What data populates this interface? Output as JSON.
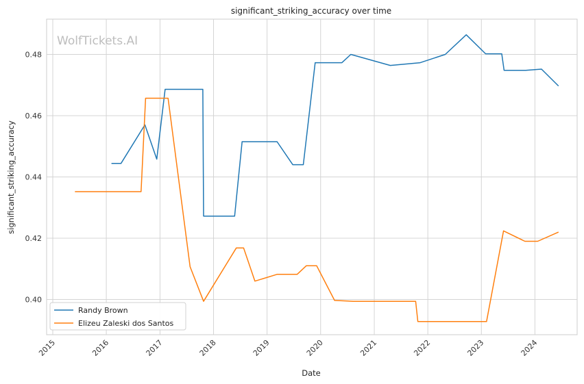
{
  "chart_data": {
    "type": "line",
    "title": "significant_striking_accuracy over time",
    "xlabel": "Date",
    "ylabel": "significant_striking_accuracy",
    "watermark": "WolfTickets.AI",
    "xlim": [
      "2014-11-20",
      "2024-10-15"
    ],
    "ylim": [
      0.3885,
      0.4915
    ],
    "x_ticks": [
      "2015-01-01",
      "2016-01-01",
      "2017-01-01",
      "2018-01-01",
      "2019-01-01",
      "2020-01-01",
      "2021-01-01",
      "2022-01-01",
      "2023-01-01",
      "2024-01-01"
    ],
    "x_tick_labels": [
      "2015",
      "2016",
      "2017",
      "2018",
      "2019",
      "2020",
      "2021",
      "2022",
      "2023",
      "2024"
    ],
    "y_ticks": [
      0.4,
      0.42,
      0.44,
      0.46,
      0.48
    ],
    "y_tick_labels": [
      "0.40",
      "0.42",
      "0.44",
      "0.46",
      "0.48"
    ],
    "grid": true,
    "legend_position": "lower-left",
    "series": [
      {
        "name": "Randy Brown",
        "color": "#1f77b4",
        "points": [
          [
            "2016-02-05",
            0.4444
          ],
          [
            "2016-04-10",
            0.4444
          ],
          [
            "2016-09-20",
            0.457
          ],
          [
            "2016-12-10",
            0.4458
          ],
          [
            "2017-02-05",
            0.4686
          ],
          [
            "2017-10-20",
            0.4686
          ],
          [
            "2017-10-25",
            0.4272
          ],
          [
            "2018-05-25",
            0.4272
          ],
          [
            "2018-07-15",
            0.4515
          ],
          [
            "2019-03-10",
            0.4515
          ],
          [
            "2019-06-25",
            0.444
          ],
          [
            "2019-09-05",
            0.444
          ],
          [
            "2019-11-25",
            0.4773
          ],
          [
            "2020-05-25",
            0.4773
          ],
          [
            "2020-07-25",
            0.48
          ],
          [
            "2021-04-20",
            0.4764
          ],
          [
            "2021-11-10",
            0.4773
          ],
          [
            "2022-04-30",
            0.48
          ],
          [
            "2022-09-20",
            0.4864
          ],
          [
            "2023-01-30",
            0.4802
          ],
          [
            "2023-05-20",
            0.4802
          ],
          [
            "2023-06-05",
            0.4748
          ],
          [
            "2023-10-30",
            0.4748
          ],
          [
            "2024-02-15",
            0.4752
          ],
          [
            "2024-06-10",
            0.4697
          ]
        ]
      },
      {
        "name": "Elizeu Zaleski dos Santos",
        "color": "#ff7f0e",
        "points": [
          [
            "2015-06-01",
            0.4352
          ],
          [
            "2016-08-25",
            0.4352
          ],
          [
            "2016-09-25",
            0.4657
          ],
          [
            "2017-02-25",
            0.4657
          ],
          [
            "2017-07-25",
            0.4107
          ],
          [
            "2017-10-25",
            0.3994
          ],
          [
            "2018-06-05",
            0.4168
          ],
          [
            "2018-07-25",
            0.4168
          ],
          [
            "2018-10-10",
            0.406
          ],
          [
            "2019-03-10",
            0.4082
          ],
          [
            "2019-07-25",
            0.4082
          ],
          [
            "2019-09-25",
            0.411
          ],
          [
            "2019-12-05",
            0.411
          ],
          [
            "2020-04-05",
            0.3997
          ],
          [
            "2020-08-10",
            0.3994
          ],
          [
            "2021-10-10",
            0.3994
          ],
          [
            "2021-10-25",
            0.3928
          ],
          [
            "2023-02-05",
            0.3928
          ],
          [
            "2023-06-01",
            0.4224
          ],
          [
            "2023-10-25",
            0.419
          ],
          [
            "2024-01-20",
            0.419
          ],
          [
            "2024-06-10",
            0.422
          ]
        ]
      }
    ]
  }
}
